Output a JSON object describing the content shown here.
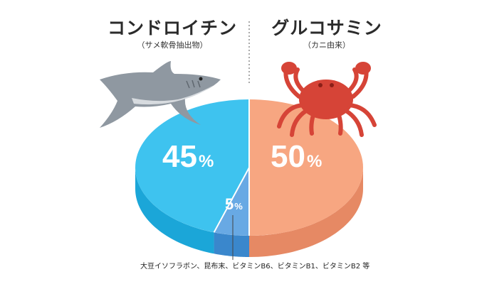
{
  "chart_data": {
    "type": "pie",
    "categories": [
      "コンドロイチン",
      "グルコサミン",
      ""
    ],
    "values": [
      45,
      50,
      5
    ],
    "unit": "%",
    "sources": [
      "（サメ軟骨抽出物）",
      "（カニ由来）"
    ],
    "labels": {
      "chondroitin_name": "コンドロイチン",
      "chondroitin_source": "（サメ軟骨抽出物）",
      "glucosamine_name": "グルコサミン",
      "glucosamine_source": "（カニ由来）",
      "chondroitin_value": "45",
      "glucosamine_value": "50",
      "other_value": "5",
      "unit": "%",
      "other_note": "大豆イソフラボン、昆布末、ビタミンB6、ビタミンB1、ビタミンB2 等"
    },
    "colors": {
      "chondroitin_top": "#3ec3ef",
      "chondroitin_side": "#1ba6d8",
      "glucosamine_top": "#f7a681",
      "glucosamine_side": "#e68964",
      "other_top": "#68a9e4",
      "other_side": "#3a87cc",
      "divider": "#ffffff",
      "shark": "#8c959e",
      "crab": "#d8453a"
    }
  }
}
